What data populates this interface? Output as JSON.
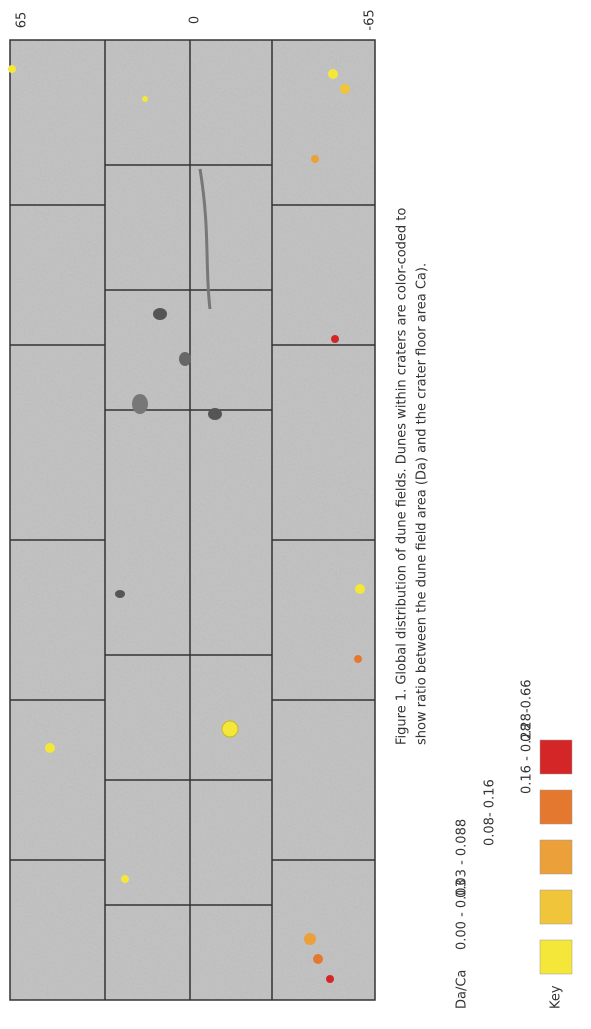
{
  "axis_labels": [
    "65",
    "0",
    "-65"
  ],
  "caption": {
    "line1": "Figure 1. Global distribution of dune fields. Dunes within craters are color-coded to",
    "line2": "show ratio between the dune field area (Da) and the crater floor area Ca)."
  },
  "key": {
    "title": "Key",
    "subtitle": "Da/Ca",
    "items": [
      {
        "label": "0.00 - 0.03",
        "color": "#f5e63a"
      },
      {
        "label": "0.03 - 0.088",
        "color": "#f0c53a"
      },
      {
        "label": "0.08- 0.16",
        "color": "#eba03a"
      },
      {
        "label": "0.16 - 0.28",
        "color": "#e5782f"
      },
      {
        "label": "0.28-0.66",
        "color": "#d42626"
      }
    ]
  }
}
